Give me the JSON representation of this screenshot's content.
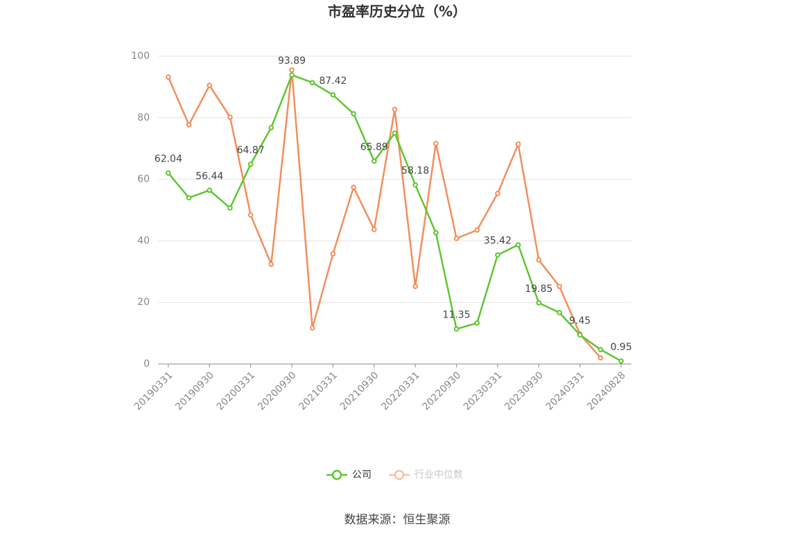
{
  "chart_data": {
    "type": "line",
    "title": "市盈率历史分位（%）",
    "categories": [
      "20190331",
      null,
      "20190930",
      null,
      "20200331",
      null,
      "20200930",
      null,
      "20210331",
      null,
      "20210930",
      null,
      "20220331",
      null,
      "20220930",
      null,
      "20230331",
      null,
      "20230930",
      null,
      "20240331",
      null,
      "20240828"
    ],
    "series": [
      {
        "name": "公司",
        "color": "#5cc631",
        "values": [
          62.04,
          54.0,
          56.44,
          50.7,
          64.87,
          76.8,
          93.89,
          91.4,
          87.42,
          81.3,
          65.89,
          75.0,
          58.18,
          42.6,
          11.35,
          13.3,
          35.42,
          38.7,
          19.85,
          16.7,
          9.45,
          4.7,
          0.95
        ]
      },
      {
        "name": "行业中位数",
        "color": "#f28e5b",
        "values": [
          93.2,
          77.7,
          90.5,
          80.2,
          48.4,
          32.4,
          95.5,
          11.7,
          35.8,
          57.4,
          43.7,
          82.7,
          25.2,
          71.6,
          40.8,
          43.5,
          55.4,
          71.4,
          33.8,
          25.2,
          9.7,
          2.0,
          null
        ]
      }
    ],
    "ylim": [
      0,
      100
    ],
    "yticks": [
      0,
      20,
      40,
      60,
      80,
      100
    ],
    "grid": true,
    "source": "数据来源：恒生聚源"
  }
}
